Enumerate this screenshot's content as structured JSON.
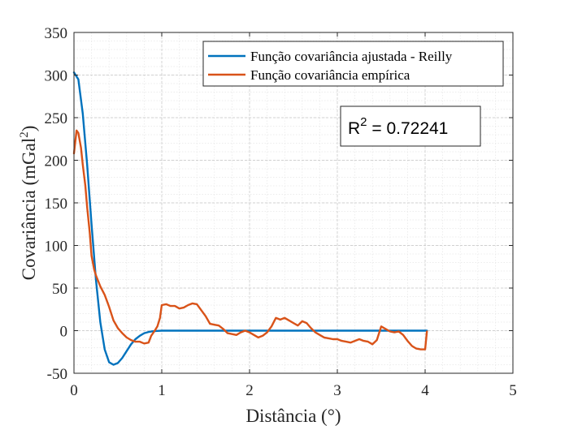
{
  "chart_data": {
    "type": "line",
    "xlabel": "Distância (°)",
    "ylabel_main": "Covariância (mGal",
    "ylabel_sup": "2",
    "ylabel_end": ")",
    "xlim": [
      0,
      5
    ],
    "ylim": [
      -50,
      350
    ],
    "xticks": [
      0,
      1,
      2,
      3,
      4,
      5
    ],
    "yticks": [
      -50,
      0,
      50,
      100,
      150,
      200,
      250,
      300,
      350
    ],
    "grid": true,
    "minor_grid": true,
    "legend_position": "top-right",
    "annotation": {
      "main": "R",
      "sup": "2",
      "rest": " = 0.72241"
    },
    "series": [
      {
        "name": "Função covariância ajustada - Reilly",
        "color": "#0072BD",
        "x": [
          0,
          0.05,
          0.1,
          0.15,
          0.2,
          0.25,
          0.3,
          0.35,
          0.4,
          0.45,
          0.5,
          0.55,
          0.6,
          0.65,
          0.7,
          0.75,
          0.8,
          0.85,
          0.9,
          0.95,
          1.0,
          1.1,
          1.2,
          1.4,
          1.6,
          2.0,
          2.5,
          3.0,
          3.5,
          4.02
        ],
        "y": [
          303,
          295,
          255,
          195,
          125,
          60,
          10,
          -22,
          -37,
          -40,
          -38,
          -32,
          -24,
          -16,
          -10,
          -6,
          -3,
          -1.5,
          -0.7,
          -0.3,
          0,
          0,
          0,
          0,
          0,
          0,
          0,
          0,
          0,
          0
        ]
      },
      {
        "name": "Função covariância empírica",
        "color": "#D95319",
        "x": [
          0,
          0.03,
          0.05,
          0.08,
          0.1,
          0.13,
          0.15,
          0.18,
          0.2,
          0.23,
          0.25,
          0.3,
          0.35,
          0.4,
          0.45,
          0.5,
          0.55,
          0.6,
          0.65,
          0.7,
          0.75,
          0.8,
          0.85,
          0.88,
          0.92,
          0.95,
          0.98,
          1.0,
          1.05,
          1.1,
          1.15,
          1.2,
          1.25,
          1.3,
          1.35,
          1.4,
          1.45,
          1.5,
          1.55,
          1.6,
          1.65,
          1.7,
          1.75,
          1.8,
          1.85,
          1.9,
          1.95,
          2.0,
          2.05,
          2.1,
          2.15,
          2.2,
          2.25,
          2.3,
          2.35,
          2.4,
          2.45,
          2.5,
          2.55,
          2.6,
          2.65,
          2.7,
          2.75,
          2.8,
          2.85,
          2.9,
          2.95,
          3.0,
          3.05,
          3.1,
          3.15,
          3.2,
          3.25,
          3.3,
          3.35,
          3.4,
          3.45,
          3.5,
          3.55,
          3.6,
          3.65,
          3.7,
          3.75,
          3.8,
          3.85,
          3.9,
          3.95,
          4.0,
          4.02
        ],
        "y": [
          208,
          235,
          232,
          215,
          195,
          170,
          145,
          115,
          88,
          72,
          65,
          52,
          42,
          28,
          12,
          3,
          -3,
          -8,
          -11,
          -13,
          -13,
          -15,
          -14,
          -6,
          0,
          5,
          15,
          30,
          31,
          29,
          29,
          26,
          27,
          30,
          32,
          31,
          24,
          17,
          8,
          7,
          6,
          2,
          -3,
          -4,
          -5,
          -2,
          0,
          -2,
          -5,
          -8,
          -6,
          -2,
          5,
          15,
          13,
          15,
          12,
          9,
          6,
          11,
          9,
          3,
          -2,
          -5,
          -8,
          -9,
          -10,
          -10,
          -12,
          -13,
          -14,
          -12,
          -10,
          -12,
          -13,
          -16,
          -11,
          5,
          2,
          -1,
          -2,
          -1,
          -5,
          -12,
          -18,
          -21,
          -22,
          -22,
          -1
        ]
      }
    ]
  }
}
